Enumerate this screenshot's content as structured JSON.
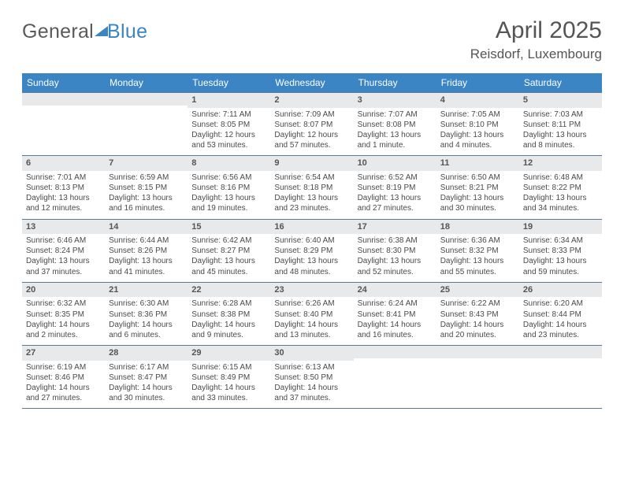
{
  "header": {
    "logo_general": "General",
    "logo_blue": "Blue",
    "month_title": "April 2025",
    "location": "Reisdorf, Luxembourg"
  },
  "colors": {
    "header_bg": "#3b85c4",
    "grid_line": "#5a7a96",
    "daynum_bg": "#e7e9eb",
    "text": "#4a4a4a",
    "logo_blue": "#3b85c4"
  },
  "weekdays": [
    "Sunday",
    "Monday",
    "Tuesday",
    "Wednesday",
    "Thursday",
    "Friday",
    "Saturday"
  ],
  "weeks": [
    [
      {
        "num": "",
        "sunrise": "",
        "sunset": "",
        "daylight": ""
      },
      {
        "num": "",
        "sunrise": "",
        "sunset": "",
        "daylight": ""
      },
      {
        "num": "1",
        "sunrise": "Sunrise: 7:11 AM",
        "sunset": "Sunset: 8:05 PM",
        "daylight": "Daylight: 12 hours and 53 minutes."
      },
      {
        "num": "2",
        "sunrise": "Sunrise: 7:09 AM",
        "sunset": "Sunset: 8:07 PM",
        "daylight": "Daylight: 12 hours and 57 minutes."
      },
      {
        "num": "3",
        "sunrise": "Sunrise: 7:07 AM",
        "sunset": "Sunset: 8:08 PM",
        "daylight": "Daylight: 13 hours and 1 minute."
      },
      {
        "num": "4",
        "sunrise": "Sunrise: 7:05 AM",
        "sunset": "Sunset: 8:10 PM",
        "daylight": "Daylight: 13 hours and 4 minutes."
      },
      {
        "num": "5",
        "sunrise": "Sunrise: 7:03 AM",
        "sunset": "Sunset: 8:11 PM",
        "daylight": "Daylight: 13 hours and 8 minutes."
      }
    ],
    [
      {
        "num": "6",
        "sunrise": "Sunrise: 7:01 AM",
        "sunset": "Sunset: 8:13 PM",
        "daylight": "Daylight: 13 hours and 12 minutes."
      },
      {
        "num": "7",
        "sunrise": "Sunrise: 6:59 AM",
        "sunset": "Sunset: 8:15 PM",
        "daylight": "Daylight: 13 hours and 16 minutes."
      },
      {
        "num": "8",
        "sunrise": "Sunrise: 6:56 AM",
        "sunset": "Sunset: 8:16 PM",
        "daylight": "Daylight: 13 hours and 19 minutes."
      },
      {
        "num": "9",
        "sunrise": "Sunrise: 6:54 AM",
        "sunset": "Sunset: 8:18 PM",
        "daylight": "Daylight: 13 hours and 23 minutes."
      },
      {
        "num": "10",
        "sunrise": "Sunrise: 6:52 AM",
        "sunset": "Sunset: 8:19 PM",
        "daylight": "Daylight: 13 hours and 27 minutes."
      },
      {
        "num": "11",
        "sunrise": "Sunrise: 6:50 AM",
        "sunset": "Sunset: 8:21 PM",
        "daylight": "Daylight: 13 hours and 30 minutes."
      },
      {
        "num": "12",
        "sunrise": "Sunrise: 6:48 AM",
        "sunset": "Sunset: 8:22 PM",
        "daylight": "Daylight: 13 hours and 34 minutes."
      }
    ],
    [
      {
        "num": "13",
        "sunrise": "Sunrise: 6:46 AM",
        "sunset": "Sunset: 8:24 PM",
        "daylight": "Daylight: 13 hours and 37 minutes."
      },
      {
        "num": "14",
        "sunrise": "Sunrise: 6:44 AM",
        "sunset": "Sunset: 8:26 PM",
        "daylight": "Daylight: 13 hours and 41 minutes."
      },
      {
        "num": "15",
        "sunrise": "Sunrise: 6:42 AM",
        "sunset": "Sunset: 8:27 PM",
        "daylight": "Daylight: 13 hours and 45 minutes."
      },
      {
        "num": "16",
        "sunrise": "Sunrise: 6:40 AM",
        "sunset": "Sunset: 8:29 PM",
        "daylight": "Daylight: 13 hours and 48 minutes."
      },
      {
        "num": "17",
        "sunrise": "Sunrise: 6:38 AM",
        "sunset": "Sunset: 8:30 PM",
        "daylight": "Daylight: 13 hours and 52 minutes."
      },
      {
        "num": "18",
        "sunrise": "Sunrise: 6:36 AM",
        "sunset": "Sunset: 8:32 PM",
        "daylight": "Daylight: 13 hours and 55 minutes."
      },
      {
        "num": "19",
        "sunrise": "Sunrise: 6:34 AM",
        "sunset": "Sunset: 8:33 PM",
        "daylight": "Daylight: 13 hours and 59 minutes."
      }
    ],
    [
      {
        "num": "20",
        "sunrise": "Sunrise: 6:32 AM",
        "sunset": "Sunset: 8:35 PM",
        "daylight": "Daylight: 14 hours and 2 minutes."
      },
      {
        "num": "21",
        "sunrise": "Sunrise: 6:30 AM",
        "sunset": "Sunset: 8:36 PM",
        "daylight": "Daylight: 14 hours and 6 minutes."
      },
      {
        "num": "22",
        "sunrise": "Sunrise: 6:28 AM",
        "sunset": "Sunset: 8:38 PM",
        "daylight": "Daylight: 14 hours and 9 minutes."
      },
      {
        "num": "23",
        "sunrise": "Sunrise: 6:26 AM",
        "sunset": "Sunset: 8:40 PM",
        "daylight": "Daylight: 14 hours and 13 minutes."
      },
      {
        "num": "24",
        "sunrise": "Sunrise: 6:24 AM",
        "sunset": "Sunset: 8:41 PM",
        "daylight": "Daylight: 14 hours and 16 minutes."
      },
      {
        "num": "25",
        "sunrise": "Sunrise: 6:22 AM",
        "sunset": "Sunset: 8:43 PM",
        "daylight": "Daylight: 14 hours and 20 minutes."
      },
      {
        "num": "26",
        "sunrise": "Sunrise: 6:20 AM",
        "sunset": "Sunset: 8:44 PM",
        "daylight": "Daylight: 14 hours and 23 minutes."
      }
    ],
    [
      {
        "num": "27",
        "sunrise": "Sunrise: 6:19 AM",
        "sunset": "Sunset: 8:46 PM",
        "daylight": "Daylight: 14 hours and 27 minutes."
      },
      {
        "num": "28",
        "sunrise": "Sunrise: 6:17 AM",
        "sunset": "Sunset: 8:47 PM",
        "daylight": "Daylight: 14 hours and 30 minutes."
      },
      {
        "num": "29",
        "sunrise": "Sunrise: 6:15 AM",
        "sunset": "Sunset: 8:49 PM",
        "daylight": "Daylight: 14 hours and 33 minutes."
      },
      {
        "num": "30",
        "sunrise": "Sunrise: 6:13 AM",
        "sunset": "Sunset: 8:50 PM",
        "daylight": "Daylight: 14 hours and 37 minutes."
      },
      {
        "num": "",
        "sunrise": "",
        "sunset": "",
        "daylight": ""
      },
      {
        "num": "",
        "sunrise": "",
        "sunset": "",
        "daylight": ""
      },
      {
        "num": "",
        "sunrise": "",
        "sunset": "",
        "daylight": ""
      }
    ]
  ]
}
